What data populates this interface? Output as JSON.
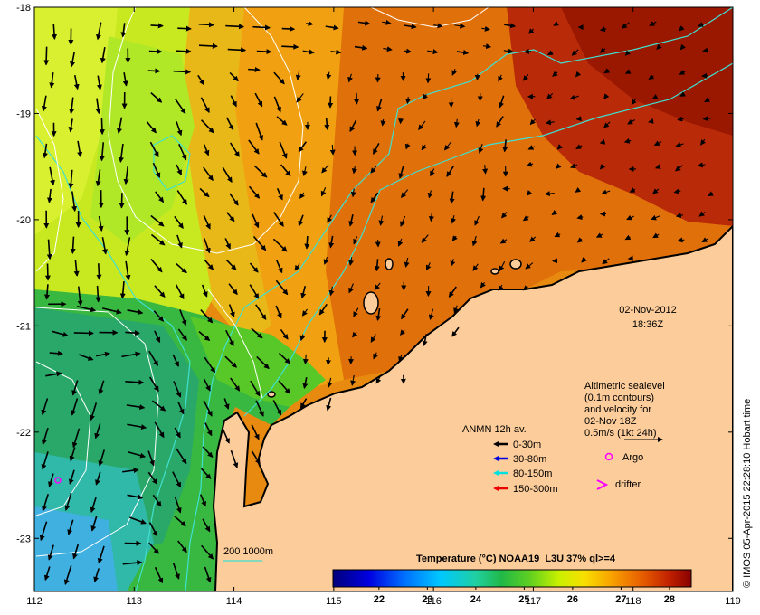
{
  "map": {
    "lon_ticks": [
      "112",
      "113",
      "114",
      "115",
      "116",
      "117",
      "118",
      "119"
    ],
    "lat_ticks": [
      "-18",
      "-19",
      "-20",
      "-21",
      "-22",
      "-23"
    ]
  },
  "timestamp": {
    "date": "02-Nov-2012",
    "time": "18:36Z"
  },
  "altimetry_note": {
    "lines": [
      "Altimetric sealevel",
      "(0.1m contours)",
      "and velocity for",
      "02-Nov 18Z",
      "0.5m/s (1kt 24h)"
    ]
  },
  "anmn_legend": {
    "title": "ANMN 12h av.",
    "items": [
      {
        "label": "0-30m",
        "color": "#000000"
      },
      {
        "label": "30-80m",
        "color": "#0000dd"
      },
      {
        "label": "80-150m",
        "color": "#00e0e0"
      },
      {
        "label": "150-300m",
        "color": "#ee0000"
      }
    ]
  },
  "markers": {
    "argo_label": "Argo",
    "drifter_label": "drifter",
    "argo_color": "#ff00ff"
  },
  "isobath_label": "200  1000m",
  "colorbar": {
    "title": "Temperature (°C) NOAA19_L3U 37% ql>=4",
    "ticks": [
      "22",
      "23",
      "24",
      "25",
      "26",
      "27",
      "28"
    ],
    "range": [
      21.05,
      28.45
    ]
  },
  "credit": "© IMOS 05-Apr-2015 22:28:10 Hobart time",
  "colors": {
    "land": "#fccc9a",
    "coastline": "#000000",
    "isobath": "#40e0d0",
    "contour": "#ffffff"
  }
}
